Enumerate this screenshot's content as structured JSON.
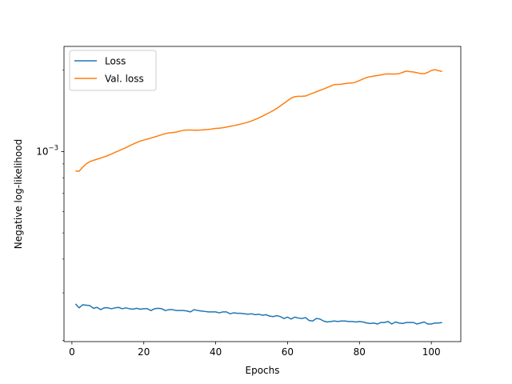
{
  "chart_data": {
    "type": "line",
    "title": "",
    "xlabel": "Epochs",
    "ylabel": "Negative log-likelihood",
    "xlim": [
      -2.2,
      108.2
    ],
    "x_ticks": [
      0,
      20,
      40,
      60,
      80,
      100
    ],
    "y_scale": "log",
    "ylim": [
      0.000198,
      0.00245
    ],
    "y_major_tick": {
      "value": 0.001,
      "label": "10−3"
    },
    "grid": false,
    "legend": {
      "position": "top-left"
    },
    "series": [
      {
        "name": "Loss",
        "color": "#1f77b4",
        "x": [
          1,
          2,
          3,
          4,
          5,
          6,
          7,
          8,
          9,
          10,
          11,
          12,
          13,
          14,
          15,
          16,
          17,
          18,
          19,
          20,
          21,
          22,
          23,
          24,
          25,
          26,
          27,
          28,
          29,
          30,
          31,
          32,
          33,
          34,
          35,
          36,
          37,
          38,
          39,
          40,
          41,
          42,
          43,
          44,
          45,
          46,
          47,
          48,
          49,
          50,
          51,
          52,
          53,
          54,
          55,
          56,
          57,
          58,
          59,
          60,
          61,
          62,
          63,
          64,
          65,
          66,
          67,
          68,
          69,
          70,
          71,
          72,
          73,
          74,
          75,
          76,
          77,
          78,
          79,
          80,
          81,
          82,
          83,
          84,
          85,
          86,
          87,
          88,
          89,
          90,
          91,
          92,
          93,
          94,
          95,
          96,
          97,
          98,
          99,
          100,
          101,
          102,
          103
        ],
        "y": [
          0.000273,
          0.000264,
          0.000271,
          0.00027,
          0.000269,
          0.000263,
          0.000265,
          0.00026,
          0.000264,
          0.000264,
          0.000262,
          0.000264,
          0.000265,
          0.000262,
          0.000264,
          0.000262,
          0.000261,
          0.000263,
          0.000261,
          0.000262,
          0.000262,
          0.000258,
          0.000262,
          0.000263,
          0.000262,
          0.000258,
          0.00026,
          0.00026,
          0.000258,
          0.000258,
          0.000258,
          0.000257,
          0.000255,
          0.00026,
          0.000258,
          0.000257,
          0.000256,
          0.000255,
          0.000255,
          0.000255,
          0.000253,
          0.000255,
          0.000255,
          0.000251,
          0.000253,
          0.000252,
          0.000252,
          0.000251,
          0.00025,
          0.000251,
          0.000249,
          0.00025,
          0.000248,
          0.000249,
          0.000246,
          0.000245,
          0.000247,
          0.000245,
          0.000241,
          0.000244,
          0.00024,
          0.000244,
          0.000242,
          0.000241,
          0.000243,
          0.000237,
          0.000236,
          0.000241,
          0.00024,
          0.000236,
          0.000234,
          0.000235,
          0.000236,
          0.000235,
          0.000236,
          0.000236,
          0.000235,
          0.000235,
          0.000234,
          0.000235,
          0.000234,
          0.000232,
          0.000231,
          0.000232,
          0.00023,
          0.000233,
          0.000233,
          0.000235,
          0.00023,
          0.000234,
          0.000232,
          0.000231,
          0.000233,
          0.000233,
          0.000233,
          0.00023,
          0.000232,
          0.000234,
          0.00023,
          0.00023,
          0.000232,
          0.000232,
          0.000233
        ]
      },
      {
        "name": "Val. loss",
        "color": "#ff7f0e",
        "x": [
          1,
          2,
          3,
          4,
          5,
          6,
          7,
          8,
          9,
          10,
          11,
          12,
          13,
          14,
          15,
          16,
          17,
          18,
          19,
          20,
          21,
          22,
          23,
          24,
          25,
          26,
          27,
          28,
          29,
          30,
          31,
          32,
          33,
          34,
          35,
          36,
          37,
          38,
          39,
          40,
          41,
          42,
          43,
          44,
          45,
          46,
          47,
          48,
          49,
          50,
          51,
          52,
          53,
          54,
          55,
          56,
          57,
          58,
          59,
          60,
          61,
          62,
          63,
          64,
          65,
          66,
          67,
          68,
          69,
          70,
          71,
          72,
          73,
          74,
          75,
          76,
          77,
          78,
          79,
          80,
          81,
          82,
          83,
          84,
          85,
          86,
          87,
          88,
          89,
          90,
          91,
          92,
          93,
          94,
          95,
          96,
          97,
          98,
          99,
          100,
          101,
          102,
          103
        ],
        "y": [
          0.000848,
          0.000845,
          0.000875,
          0.000901,
          0.000918,
          0.000928,
          0.000937,
          0.000946,
          0.000956,
          0.000967,
          0.000979,
          0.000993,
          0.001006,
          0.00102,
          0.001034,
          0.00105,
          0.001065,
          0.00108,
          0.001094,
          0.001103,
          0.001112,
          0.001122,
          0.001132,
          0.001143,
          0.001155,
          0.001165,
          0.001172,
          0.001175,
          0.00118,
          0.00119,
          0.001198,
          0.001202,
          0.001202,
          0.0012,
          0.0012,
          0.001202,
          0.001205,
          0.001208,
          0.001212,
          0.001218,
          0.00122,
          0.001225,
          0.001232,
          0.00124,
          0.001247,
          0.001255,
          0.001264,
          0.001274,
          0.001285,
          0.001298,
          0.001315,
          0.001332,
          0.001352,
          0.001373,
          0.001395,
          0.001418,
          0.001445,
          0.001476,
          0.001509,
          0.001542,
          0.001577,
          0.001596,
          0.001602,
          0.001602,
          0.001605,
          0.001625,
          0.001645,
          0.001665,
          0.001684,
          0.001703,
          0.001725,
          0.001748,
          0.001769,
          0.001772,
          0.001776,
          0.001785,
          0.001792,
          0.001793,
          0.001808,
          0.001832,
          0.001856,
          0.00188,
          0.001893,
          0.001902,
          0.001912,
          0.001922,
          0.001935,
          0.001938,
          0.001937,
          0.001936,
          0.001942,
          0.001963,
          0.001985,
          0.001976,
          0.00197,
          0.001958,
          0.001944,
          0.001941,
          0.001963,
          0.001995,
          0.002009,
          0.001994,
          0.001978
        ]
      }
    ]
  }
}
